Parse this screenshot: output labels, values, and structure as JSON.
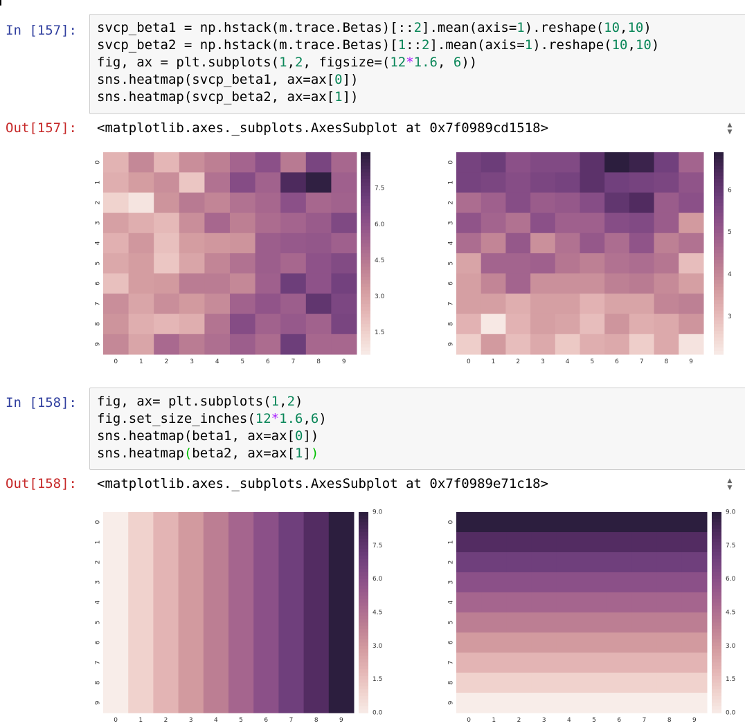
{
  "cells": [
    {
      "in_prompt": "In [157]:",
      "out_prompt": "Out[157]:",
      "out_text": "<matplotlib.axes._subplots.AxesSubplot at 0x7f0989cd1518>"
    },
    {
      "in_prompt": "In [158]:",
      "out_prompt": "Out[158]:",
      "out_text": "<matplotlib.axes._subplots.AxesSubplot at 0x7f0989e71c18>"
    }
  ],
  "scroll_icon": "up-down-arrows-icon",
  "colormap": [
    "#f8ede9",
    "#f0d2cd",
    "#e3b4b4",
    "#d29a9f",
    "#bc7e93",
    "#a5658e",
    "#8b5088",
    "#6f3f7c",
    "#532c62",
    "#2c1e3e"
  ],
  "chart_data": [
    {
      "type": "heatmap",
      "xticks": [
        "0",
        "1",
        "2",
        "3",
        "4",
        "5",
        "6",
        "7",
        "8",
        "9"
      ],
      "yticks": [
        "0",
        "1",
        "2",
        "3",
        "4",
        "5",
        "6",
        "7",
        "8",
        "9"
      ],
      "colorbar_ticks": [
        "1.5",
        "3.0",
        "4.5",
        "6.0",
        "7.5"
      ],
      "vmin": 0.6,
      "vmax": 9.0,
      "values": [
        [
          2.5,
          4.0,
          2.4,
          3.8,
          4.3,
          5.3,
          6.2,
          4.5,
          6.8,
          5.2
        ],
        [
          2.7,
          3.3,
          3.8,
          1.9,
          4.8,
          6.4,
          5.4,
          8.2,
          8.9,
          5.5
        ],
        [
          1.5,
          0.9,
          3.6,
          4.5,
          4.1,
          4.8,
          5.2,
          6.2,
          5.2,
          5.4
        ],
        [
          3.2,
          2.7,
          2.3,
          3.8,
          5.2,
          4.3,
          5.0,
          5.3,
          5.7,
          6.6
        ],
        [
          2.6,
          3.5,
          2.1,
          3.3,
          3.5,
          3.6,
          5.6,
          5.8,
          5.9,
          5.5
        ],
        [
          2.9,
          3.3,
          1.9,
          3.0,
          4.1,
          4.8,
          5.6,
          5.2,
          6.1,
          6.5
        ],
        [
          2.1,
          3.3,
          3.4,
          4.4,
          4.4,
          4.0,
          5.5,
          7.2,
          6.1,
          7.0
        ],
        [
          3.8,
          3.0,
          3.8,
          3.4,
          3.9,
          5.4,
          6.0,
          5.6,
          7.6,
          6.7
        ],
        [
          3.6,
          2.7,
          2.4,
          2.7,
          4.7,
          6.4,
          5.4,
          5.8,
          5.4,
          6.8
        ],
        [
          4.0,
          3.0,
          5.1,
          4.4,
          4.9,
          5.6,
          5.0,
          7.2,
          5.2,
          5.2
        ]
      ]
    },
    {
      "type": "heatmap",
      "xticks": [
        "0",
        "1",
        "2",
        "3",
        "4",
        "5",
        "6",
        "7",
        "8",
        "9"
      ],
      "yticks": [
        "0",
        "1",
        "2",
        "3",
        "4",
        "5",
        "6",
        "7",
        "8",
        "9"
      ],
      "colorbar_ticks": [
        "3",
        "4",
        "5",
        "6"
      ],
      "vmin": 2.1,
      "vmax": 6.9,
      "values": [
        [
          5.7,
          5.9,
          5.3,
          5.5,
          5.5,
          6.2,
          6.9,
          6.7,
          5.8,
          4.8
        ],
        [
          5.7,
          5.6,
          5.4,
          5.6,
          5.7,
          6.2,
          5.8,
          5.7,
          5.6,
          5.2
        ],
        [
          4.6,
          4.9,
          5.4,
          5.0,
          5.1,
          5.4,
          6.1,
          6.4,
          5.0,
          5.3
        ],
        [
          5.2,
          4.8,
          4.5,
          5.3,
          4.9,
          4.9,
          5.4,
          5.5,
          5.0,
          3.7
        ],
        [
          4.6,
          4.1,
          5.1,
          3.9,
          4.5,
          5.1,
          4.6,
          5.2,
          4.2,
          4.5
        ],
        [
          3.5,
          4.8,
          4.8,
          4.9,
          4.4,
          4.2,
          4.5,
          4.6,
          4.4,
          3.0
        ],
        [
          3.6,
          4.1,
          4.8,
          3.9,
          3.9,
          3.9,
          4.2,
          4.3,
          4.0,
          3.6
        ],
        [
          3.6,
          3.6,
          3.3,
          3.6,
          3.6,
          3.2,
          3.5,
          3.5,
          4.1,
          4.2
        ],
        [
          3.2,
          2.2,
          3.2,
          3.6,
          3.5,
          3.0,
          3.8,
          3.3,
          3.4,
          3.8
        ],
        [
          2.7,
          3.7,
          3.0,
          3.4,
          2.8,
          3.3,
          3.4,
          2.7,
          3.4,
          2.3
        ]
      ]
    },
    {
      "type": "heatmap",
      "xticks": [
        "0",
        "1",
        "2",
        "3",
        "4",
        "5",
        "6",
        "7",
        "8",
        "9"
      ],
      "yticks": [
        "0",
        "1",
        "2",
        "3",
        "4",
        "5",
        "6",
        "7",
        "8",
        "9"
      ],
      "colorbar_ticks": [
        "0.0",
        "1.5",
        "3.0",
        "4.5",
        "6.0",
        "7.5",
        "9.0"
      ],
      "vmin": 0,
      "vmax": 9,
      "column_values": [
        0,
        1,
        2,
        3,
        4,
        5,
        6,
        7,
        8,
        9
      ]
    },
    {
      "type": "heatmap",
      "xticks": [
        "0",
        "1",
        "2",
        "3",
        "4",
        "5",
        "6",
        "7",
        "8",
        "9"
      ],
      "yticks": [
        "0",
        "1",
        "2",
        "3",
        "4",
        "5",
        "6",
        "7",
        "8",
        "9"
      ],
      "colorbar_ticks": [
        "0.0",
        "1.5",
        "3.0",
        "4.5",
        "6.0",
        "7.5",
        "9.0"
      ],
      "vmin": 0,
      "vmax": 9,
      "row_values": [
        9,
        8,
        7,
        6,
        5,
        4,
        3,
        2,
        1,
        0
      ]
    }
  ]
}
